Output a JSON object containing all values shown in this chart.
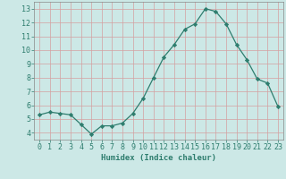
{
  "x": [
    0,
    1,
    2,
    3,
    4,
    5,
    6,
    7,
    8,
    9,
    10,
    11,
    12,
    13,
    14,
    15,
    16,
    17,
    18,
    19,
    20,
    21,
    22,
    23
  ],
  "y": [
    5.3,
    5.5,
    5.4,
    5.3,
    4.6,
    3.9,
    4.5,
    4.5,
    4.7,
    5.4,
    6.5,
    8.0,
    9.5,
    10.4,
    11.5,
    11.9,
    13.0,
    12.8,
    11.9,
    10.4,
    9.3,
    7.9,
    7.6,
    5.9
  ],
  "line_color": "#2e7d6e",
  "marker": "D",
  "marker_size": 2.2,
  "bg_color": "#cce8e6",
  "grid_major_color": "#b0d0ce",
  "grid_minor_color": "#e8f4f3",
  "xlabel": "Humidex (Indice chaleur)",
  "xlim": [
    -0.5,
    23.5
  ],
  "ylim": [
    3.5,
    13.5
  ],
  "yticks": [
    4,
    5,
    6,
    7,
    8,
    9,
    10,
    11,
    12,
    13
  ],
  "xticks": [
    0,
    1,
    2,
    3,
    4,
    5,
    6,
    7,
    8,
    9,
    10,
    11,
    12,
    13,
    14,
    15,
    16,
    17,
    18,
    19,
    20,
    21,
    22,
    23
  ],
  "text_color": "#2e7d6e",
  "xlabel_fontsize": 6.5,
  "tick_fontsize": 6.0,
  "linewidth": 0.9
}
